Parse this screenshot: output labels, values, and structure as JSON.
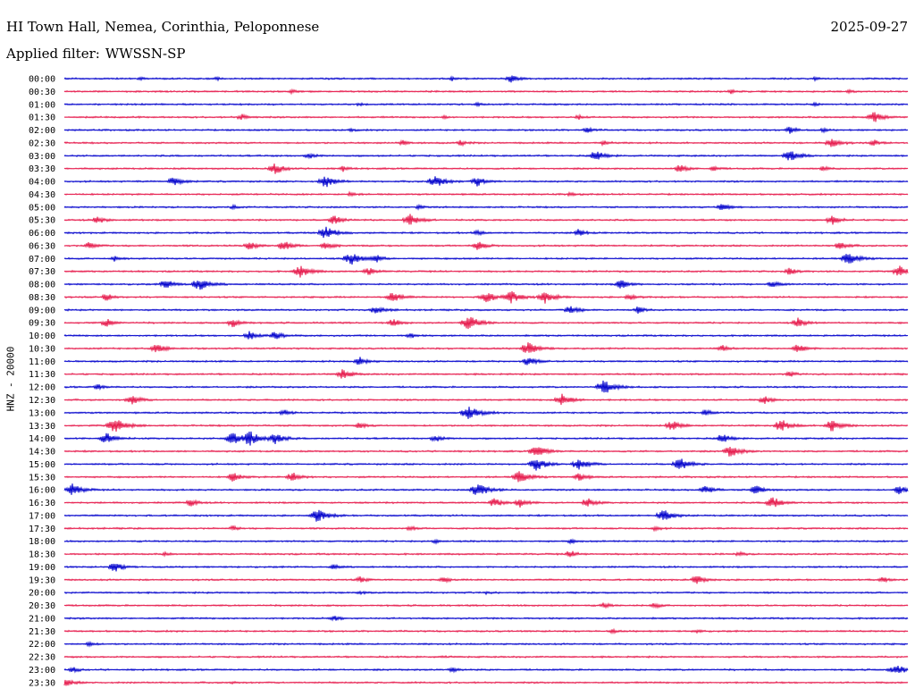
{
  "header": {
    "station_title": "HI Town Hall, Nemea, Corinthia, Peloponnese",
    "date": "2025-09-27",
    "filter_label": "Applied filter:",
    "filter_value": "WWSSN-SP"
  },
  "chart_data": {
    "type": "line",
    "title": "HI Town Hall, Nemea, Corinthia, Peloponnese",
    "ylabel": "HNZ - 20000",
    "xlabel": "",
    "trace_colors": [
      "#0000cc",
      "#e6194b"
    ],
    "rows": [
      {
        "label": "00:00",
        "bursts": [
          {
            "x": 0.09,
            "a": 1.5
          },
          {
            "x": 0.18,
            "a": 1.8
          },
          {
            "x": 0.46,
            "a": 2.2
          },
          {
            "x": 0.53,
            "a": 4.5
          },
          {
            "x": 0.89,
            "a": 1.4
          }
        ]
      },
      {
        "label": "00:30",
        "bursts": [
          {
            "x": 0.27,
            "a": 2.0
          },
          {
            "x": 0.79,
            "a": 2.2
          },
          {
            "x": 0.93,
            "a": 1.5
          }
        ]
      },
      {
        "label": "01:00",
        "bursts": [
          {
            "x": 0.35,
            "a": 1.5
          },
          {
            "x": 0.49,
            "a": 1.6
          },
          {
            "x": 0.89,
            "a": 1.8
          }
        ]
      },
      {
        "label": "01:30",
        "bursts": [
          {
            "x": 0.21,
            "a": 3.5
          },
          {
            "x": 0.45,
            "a": 1.5
          },
          {
            "x": 0.61,
            "a": 2.5
          },
          {
            "x": 0.96,
            "a": 6.0
          }
        ]
      },
      {
        "label": "02:00",
        "bursts": [
          {
            "x": 0.34,
            "a": 1.6
          },
          {
            "x": 0.62,
            "a": 3.0
          },
          {
            "x": 0.86,
            "a": 4.0
          },
          {
            "x": 0.9,
            "a": 2.0
          }
        ]
      },
      {
        "label": "02:30",
        "bursts": [
          {
            "x": 0.4,
            "a": 3.0
          },
          {
            "x": 0.47,
            "a": 3.0
          },
          {
            "x": 0.64,
            "a": 3.0
          },
          {
            "x": 0.91,
            "a": 5.5
          },
          {
            "x": 0.96,
            "a": 3.5
          }
        ]
      },
      {
        "label": "03:00",
        "bursts": [
          {
            "x": 0.29,
            "a": 3.5
          },
          {
            "x": 0.63,
            "a": 5.5
          },
          {
            "x": 0.86,
            "a": 6.5
          }
        ]
      },
      {
        "label": "03:30",
        "bursts": [
          {
            "x": 0.25,
            "a": 6.0
          },
          {
            "x": 0.33,
            "a": 3.0
          },
          {
            "x": 0.73,
            "a": 4.5
          },
          {
            "x": 0.77,
            "a": 3.0
          },
          {
            "x": 0.9,
            "a": 2.5
          }
        ]
      },
      {
        "label": "04:00",
        "bursts": [
          {
            "x": 0.13,
            "a": 5.5
          },
          {
            "x": 0.31,
            "a": 6.5
          },
          {
            "x": 0.44,
            "a": 7.0
          },
          {
            "x": 0.49,
            "a": 5.5
          }
        ]
      },
      {
        "label": "04:30",
        "bursts": [
          {
            "x": 0.34,
            "a": 2.5
          },
          {
            "x": 0.6,
            "a": 2.2
          }
        ]
      },
      {
        "label": "05:00",
        "bursts": [
          {
            "x": 0.2,
            "a": 2.0
          },
          {
            "x": 0.42,
            "a": 2.0
          },
          {
            "x": 0.78,
            "a": 4.5
          }
        ]
      },
      {
        "label": "05:30",
        "bursts": [
          {
            "x": 0.04,
            "a": 4.5
          },
          {
            "x": 0.32,
            "a": 5.0
          },
          {
            "x": 0.41,
            "a": 6.5
          },
          {
            "x": 0.91,
            "a": 5.0
          }
        ]
      },
      {
        "label": "06:00",
        "bursts": [
          {
            "x": 0.31,
            "a": 7.0
          },
          {
            "x": 0.49,
            "a": 3.0
          },
          {
            "x": 0.61,
            "a": 4.0
          }
        ]
      },
      {
        "label": "06:30",
        "bursts": [
          {
            "x": 0.03,
            "a": 4.0
          },
          {
            "x": 0.22,
            "a": 5.0
          },
          {
            "x": 0.26,
            "a": 5.5
          },
          {
            "x": 0.31,
            "a": 4.5
          },
          {
            "x": 0.49,
            "a": 5.0
          },
          {
            "x": 0.92,
            "a": 4.5
          }
        ]
      },
      {
        "label": "07:00",
        "bursts": [
          {
            "x": 0.06,
            "a": 3.0
          },
          {
            "x": 0.34,
            "a": 7.0
          },
          {
            "x": 0.37,
            "a": 4.0
          },
          {
            "x": 0.93,
            "a": 7.0
          }
        ]
      },
      {
        "label": "07:30",
        "bursts": [
          {
            "x": 0.28,
            "a": 6.5
          },
          {
            "x": 0.36,
            "a": 4.5
          },
          {
            "x": 0.86,
            "a": 4.0
          },
          {
            "x": 0.99,
            "a": 6.0
          }
        ]
      },
      {
        "label": "08:00",
        "bursts": [
          {
            "x": 0.12,
            "a": 5.5
          },
          {
            "x": 0.16,
            "a": 7.0
          },
          {
            "x": 0.66,
            "a": 5.0
          },
          {
            "x": 0.84,
            "a": 4.0
          }
        ]
      },
      {
        "label": "08:30",
        "bursts": [
          {
            "x": 0.05,
            "a": 4.0
          },
          {
            "x": 0.39,
            "a": 6.0
          },
          {
            "x": 0.5,
            "a": 6.5
          },
          {
            "x": 0.53,
            "a": 6.5
          },
          {
            "x": 0.57,
            "a": 6.5
          },
          {
            "x": 0.67,
            "a": 3.5
          }
        ]
      },
      {
        "label": "09:00",
        "bursts": [
          {
            "x": 0.37,
            "a": 5.0
          },
          {
            "x": 0.6,
            "a": 5.0
          },
          {
            "x": 0.68,
            "a": 3.5
          }
        ]
      },
      {
        "label": "09:30",
        "bursts": [
          {
            "x": 0.05,
            "a": 4.5
          },
          {
            "x": 0.2,
            "a": 5.0
          },
          {
            "x": 0.39,
            "a": 4.5
          },
          {
            "x": 0.48,
            "a": 7.5
          },
          {
            "x": 0.87,
            "a": 5.0
          }
        ]
      },
      {
        "label": "10:00",
        "bursts": [
          {
            "x": 0.22,
            "a": 5.0
          },
          {
            "x": 0.25,
            "a": 5.0
          },
          {
            "x": 0.41,
            "a": 3.0
          }
        ]
      },
      {
        "label": "10:30",
        "bursts": [
          {
            "x": 0.11,
            "a": 5.5
          },
          {
            "x": 0.55,
            "a": 7.0
          },
          {
            "x": 0.78,
            "a": 3.5
          },
          {
            "x": 0.87,
            "a": 5.0
          }
        ]
      },
      {
        "label": "11:00",
        "bursts": [
          {
            "x": 0.35,
            "a": 4.5
          },
          {
            "x": 0.55,
            "a": 5.0
          }
        ]
      },
      {
        "label": "11:30",
        "bursts": [
          {
            "x": 0.33,
            "a": 5.5
          },
          {
            "x": 0.86,
            "a": 3.0
          }
        ]
      },
      {
        "label": "12:00",
        "bursts": [
          {
            "x": 0.04,
            "a": 3.0
          },
          {
            "x": 0.64,
            "a": 7.5
          }
        ]
      },
      {
        "label": "12:30",
        "bursts": [
          {
            "x": 0.08,
            "a": 5.5
          },
          {
            "x": 0.59,
            "a": 6.5
          },
          {
            "x": 0.83,
            "a": 4.5
          }
        ]
      },
      {
        "label": "13:00",
        "bursts": [
          {
            "x": 0.26,
            "a": 3.5
          },
          {
            "x": 0.48,
            "a": 7.5
          },
          {
            "x": 0.76,
            "a": 3.5
          }
        ]
      },
      {
        "label": "13:30",
        "bursts": [
          {
            "x": 0.06,
            "a": 8.0
          },
          {
            "x": 0.35,
            "a": 3.5
          },
          {
            "x": 0.72,
            "a": 5.5
          },
          {
            "x": 0.85,
            "a": 6.5
          },
          {
            "x": 0.91,
            "a": 6.5
          }
        ]
      },
      {
        "label": "14:00",
        "bursts": [
          {
            "x": 0.05,
            "a": 6.0
          },
          {
            "x": 0.2,
            "a": 7.0
          },
          {
            "x": 0.22,
            "a": 7.5
          },
          {
            "x": 0.25,
            "a": 6.0
          },
          {
            "x": 0.44,
            "a": 4.0
          },
          {
            "x": 0.78,
            "a": 5.0
          }
        ]
      },
      {
        "label": "14:30",
        "bursts": [
          {
            "x": 0.56,
            "a": 6.5
          },
          {
            "x": 0.79,
            "a": 6.5
          }
        ]
      },
      {
        "label": "15:00",
        "bursts": [
          {
            "x": 0.56,
            "a": 7.0
          },
          {
            "x": 0.61,
            "a": 6.5
          },
          {
            "x": 0.73,
            "a": 7.0
          }
        ]
      },
      {
        "label": "15:30",
        "bursts": [
          {
            "x": 0.2,
            "a": 5.5
          },
          {
            "x": 0.27,
            "a": 5.5
          },
          {
            "x": 0.54,
            "a": 7.0
          },
          {
            "x": 0.61,
            "a": 4.5
          }
        ]
      },
      {
        "label": "16:00",
        "bursts": [
          {
            "x": 0.01,
            "a": 6.5
          },
          {
            "x": 0.49,
            "a": 7.5
          },
          {
            "x": 0.76,
            "a": 5.0
          },
          {
            "x": 0.82,
            "a": 5.0
          },
          {
            "x": 0.99,
            "a": 5.0
          }
        ]
      },
      {
        "label": "16:30",
        "bursts": [
          {
            "x": 0.15,
            "a": 4.0
          },
          {
            "x": 0.51,
            "a": 5.0
          },
          {
            "x": 0.54,
            "a": 5.0
          },
          {
            "x": 0.62,
            "a": 5.0
          },
          {
            "x": 0.84,
            "a": 6.5
          }
        ]
      },
      {
        "label": "17:00",
        "bursts": [
          {
            "x": 0.3,
            "a": 7.0
          },
          {
            "x": 0.71,
            "a": 6.5
          }
        ]
      },
      {
        "label": "17:30",
        "bursts": [
          {
            "x": 0.2,
            "a": 2.5
          },
          {
            "x": 0.41,
            "a": 2.5
          },
          {
            "x": 0.7,
            "a": 2.5
          }
        ]
      },
      {
        "label": "18:00",
        "bursts": [
          {
            "x": 0.44,
            "a": 2.2
          },
          {
            "x": 0.6,
            "a": 2.2
          }
        ]
      },
      {
        "label": "18:30",
        "bursts": [
          {
            "x": 0.12,
            "a": 2.0
          },
          {
            "x": 0.6,
            "a": 4.0
          },
          {
            "x": 0.8,
            "a": 2.5
          }
        ]
      },
      {
        "label": "19:00",
        "bursts": [
          {
            "x": 0.06,
            "a": 5.5
          },
          {
            "x": 0.32,
            "a": 3.0
          }
        ]
      },
      {
        "label": "19:30",
        "bursts": [
          {
            "x": 0.35,
            "a": 3.5
          },
          {
            "x": 0.45,
            "a": 3.0
          },
          {
            "x": 0.75,
            "a": 5.0
          },
          {
            "x": 0.97,
            "a": 3.0
          }
        ]
      },
      {
        "label": "20:00",
        "bursts": [
          {
            "x": 0.35,
            "a": 2.0
          },
          {
            "x": 0.5,
            "a": 1.5
          }
        ]
      },
      {
        "label": "20:30",
        "bursts": [
          {
            "x": 0.64,
            "a": 3.0
          },
          {
            "x": 0.7,
            "a": 3.0
          }
        ]
      },
      {
        "label": "21:00",
        "bursts": [
          {
            "x": 0.32,
            "a": 3.0
          }
        ]
      },
      {
        "label": "21:30",
        "bursts": [
          {
            "x": 0.65,
            "a": 2.0
          },
          {
            "x": 0.75,
            "a": 2.0
          }
        ]
      },
      {
        "label": "22:00",
        "bursts": [
          {
            "x": 0.03,
            "a": 2.5
          }
        ]
      },
      {
        "label": "22:30",
        "bursts": [
          {
            "x": 0.45,
            "a": 1.5
          }
        ]
      },
      {
        "label": "23:00",
        "bursts": [
          {
            "x": 0.01,
            "a": 3.0
          },
          {
            "x": 0.46,
            "a": 3.0
          },
          {
            "x": 0.98,
            "a": 3.0
          },
          {
            "x": 0.99,
            "a": 4.5
          }
        ]
      },
      {
        "label": "23:30",
        "bursts": [
          {
            "x": 0.0,
            "a": 5.0
          },
          {
            "x": 0.2,
            "a": 1.5
          }
        ]
      }
    ]
  }
}
